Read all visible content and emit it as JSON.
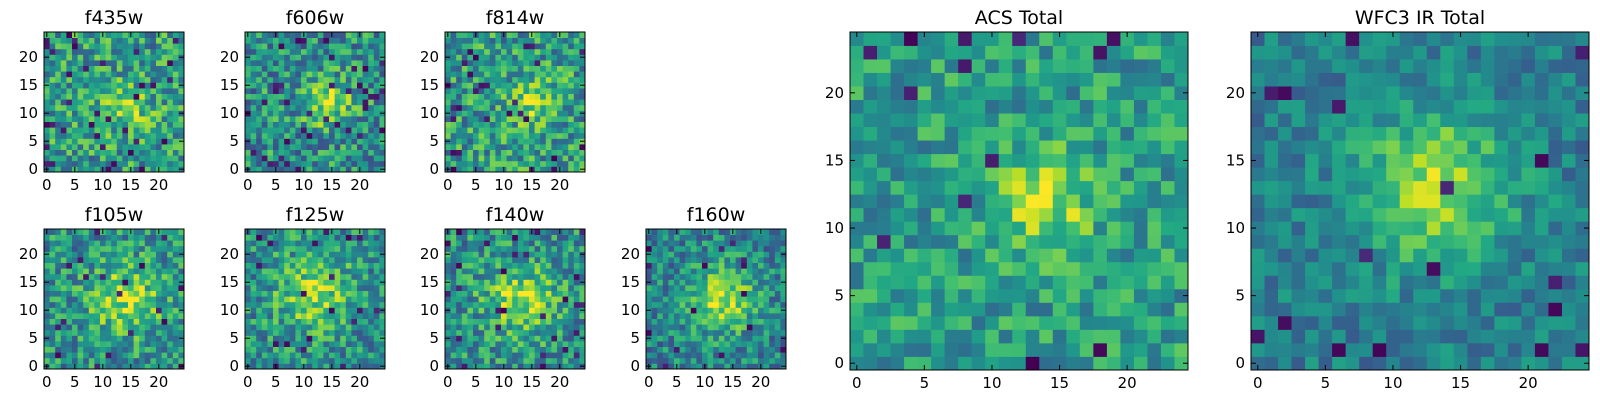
{
  "figure": {
    "description_free": true
  },
  "chart_data": [
    {
      "type": "heatmap",
      "title": "f435w",
      "grid_size": 25,
      "colormap": "viridis",
      "xticks": [
        "0",
        "5",
        "10",
        "15",
        "20"
      ],
      "yticks": [
        "0",
        "5",
        "10",
        "15",
        "20"
      ],
      "peak": {
        "x": 14,
        "y": 11
      },
      "texture": {
        "seed": 11,
        "noise": 0.55,
        "amplitude": 0.25,
        "sigma": 3.0,
        "base": 0.55,
        "outlier_rate": 0.05
      }
    },
    {
      "type": "heatmap",
      "title": "f606w",
      "grid_size": 25,
      "colormap": "viridis",
      "xticks": [
        "0",
        "5",
        "10",
        "15",
        "20"
      ],
      "yticks": [
        "0",
        "5",
        "10",
        "15",
        "20"
      ],
      "peak": {
        "x": 14,
        "y": 12
      },
      "texture": {
        "seed": 23,
        "noise": 0.55,
        "amplitude": 0.35,
        "sigma": 3.0,
        "base": 0.5,
        "outlier_rate": 0.05
      }
    },
    {
      "type": "heatmap",
      "title": "f814w",
      "grid_size": 25,
      "colormap": "viridis",
      "xticks": [
        "0",
        "5",
        "10",
        "15",
        "20"
      ],
      "yticks": [
        "0",
        "5",
        "10",
        "15",
        "20"
      ],
      "peak": {
        "x": 15,
        "y": 12
      },
      "texture": {
        "seed": 37,
        "noise": 0.55,
        "amplitude": 0.25,
        "sigma": 3.0,
        "base": 0.55,
        "outlier_rate": 0.05
      }
    },
    {
      "type": "heatmap",
      "title": "f105w",
      "grid_size": 25,
      "colormap": "viridis",
      "xticks": [
        "0",
        "5",
        "10",
        "15",
        "20"
      ],
      "yticks": [
        "0",
        "5",
        "10",
        "15",
        "20"
      ],
      "peak": {
        "x": 14,
        "y": 12
      },
      "texture": {
        "seed": 41,
        "noise": 0.5,
        "amplitude": 0.35,
        "sigma": 4.5,
        "base": 0.5,
        "outlier_rate": 0.04
      }
    },
    {
      "type": "heatmap",
      "title": "f125w",
      "grid_size": 25,
      "colormap": "viridis",
      "xticks": [
        "0",
        "5",
        "10",
        "15",
        "20"
      ],
      "yticks": [
        "0",
        "5",
        "10",
        "15",
        "20"
      ],
      "peak": {
        "x": 12,
        "y": 13
      },
      "texture": {
        "seed": 53,
        "noise": 0.5,
        "amplitude": 0.35,
        "sigma": 4.5,
        "base": 0.5,
        "outlier_rate": 0.04
      }
    },
    {
      "type": "heatmap",
      "title": "f140w",
      "grid_size": 25,
      "colormap": "viridis",
      "xticks": [
        "0",
        "5",
        "10",
        "15",
        "20"
      ],
      "yticks": [
        "0",
        "5",
        "10",
        "15",
        "20"
      ],
      "peak": {
        "x": 13,
        "y": 12
      },
      "texture": {
        "seed": 67,
        "noise": 0.5,
        "amplitude": 0.35,
        "sigma": 4.5,
        "base": 0.5,
        "outlier_rate": 0.04
      }
    },
    {
      "type": "heatmap",
      "title": "f160w",
      "grid_size": 25,
      "colormap": "viridis",
      "xticks": [
        "0",
        "5",
        "10",
        "15",
        "20"
      ],
      "yticks": [
        "0",
        "5",
        "10",
        "15",
        "20"
      ],
      "peak": {
        "x": 13,
        "y": 12
      },
      "texture": {
        "seed": 79,
        "noise": 0.45,
        "amplitude": 0.45,
        "sigma": 4.0,
        "base": 0.45,
        "outlier_rate": 0.03
      }
    },
    {
      "type": "heatmap",
      "title": "ACS Total",
      "grid_size": 25,
      "colormap": "viridis",
      "xticks": [
        "0",
        "5",
        "10",
        "15",
        "20"
      ],
      "yticks": [
        "0",
        "5",
        "10",
        "15",
        "20"
      ],
      "peak": {
        "x": 14,
        "y": 12
      },
      "texture": {
        "seed": 97,
        "noise": 0.4,
        "amplitude": 0.35,
        "sigma": 2.5,
        "base": 0.55,
        "outlier_rate": 0.03
      }
    },
    {
      "type": "heatmap",
      "title": "WFC3 IR Total",
      "grid_size": 25,
      "colormap": "viridis",
      "xticks": [
        "0",
        "5",
        "10",
        "15",
        "20"
      ],
      "yticks": [
        "0",
        "5",
        "10",
        "15",
        "20"
      ],
      "peak": {
        "x": 13,
        "y": 13
      },
      "texture": {
        "seed": 113,
        "noise": 0.3,
        "amplitude": 0.45,
        "sigma": 4.0,
        "base": 0.42,
        "outlier_rate": 0.025
      }
    }
  ]
}
